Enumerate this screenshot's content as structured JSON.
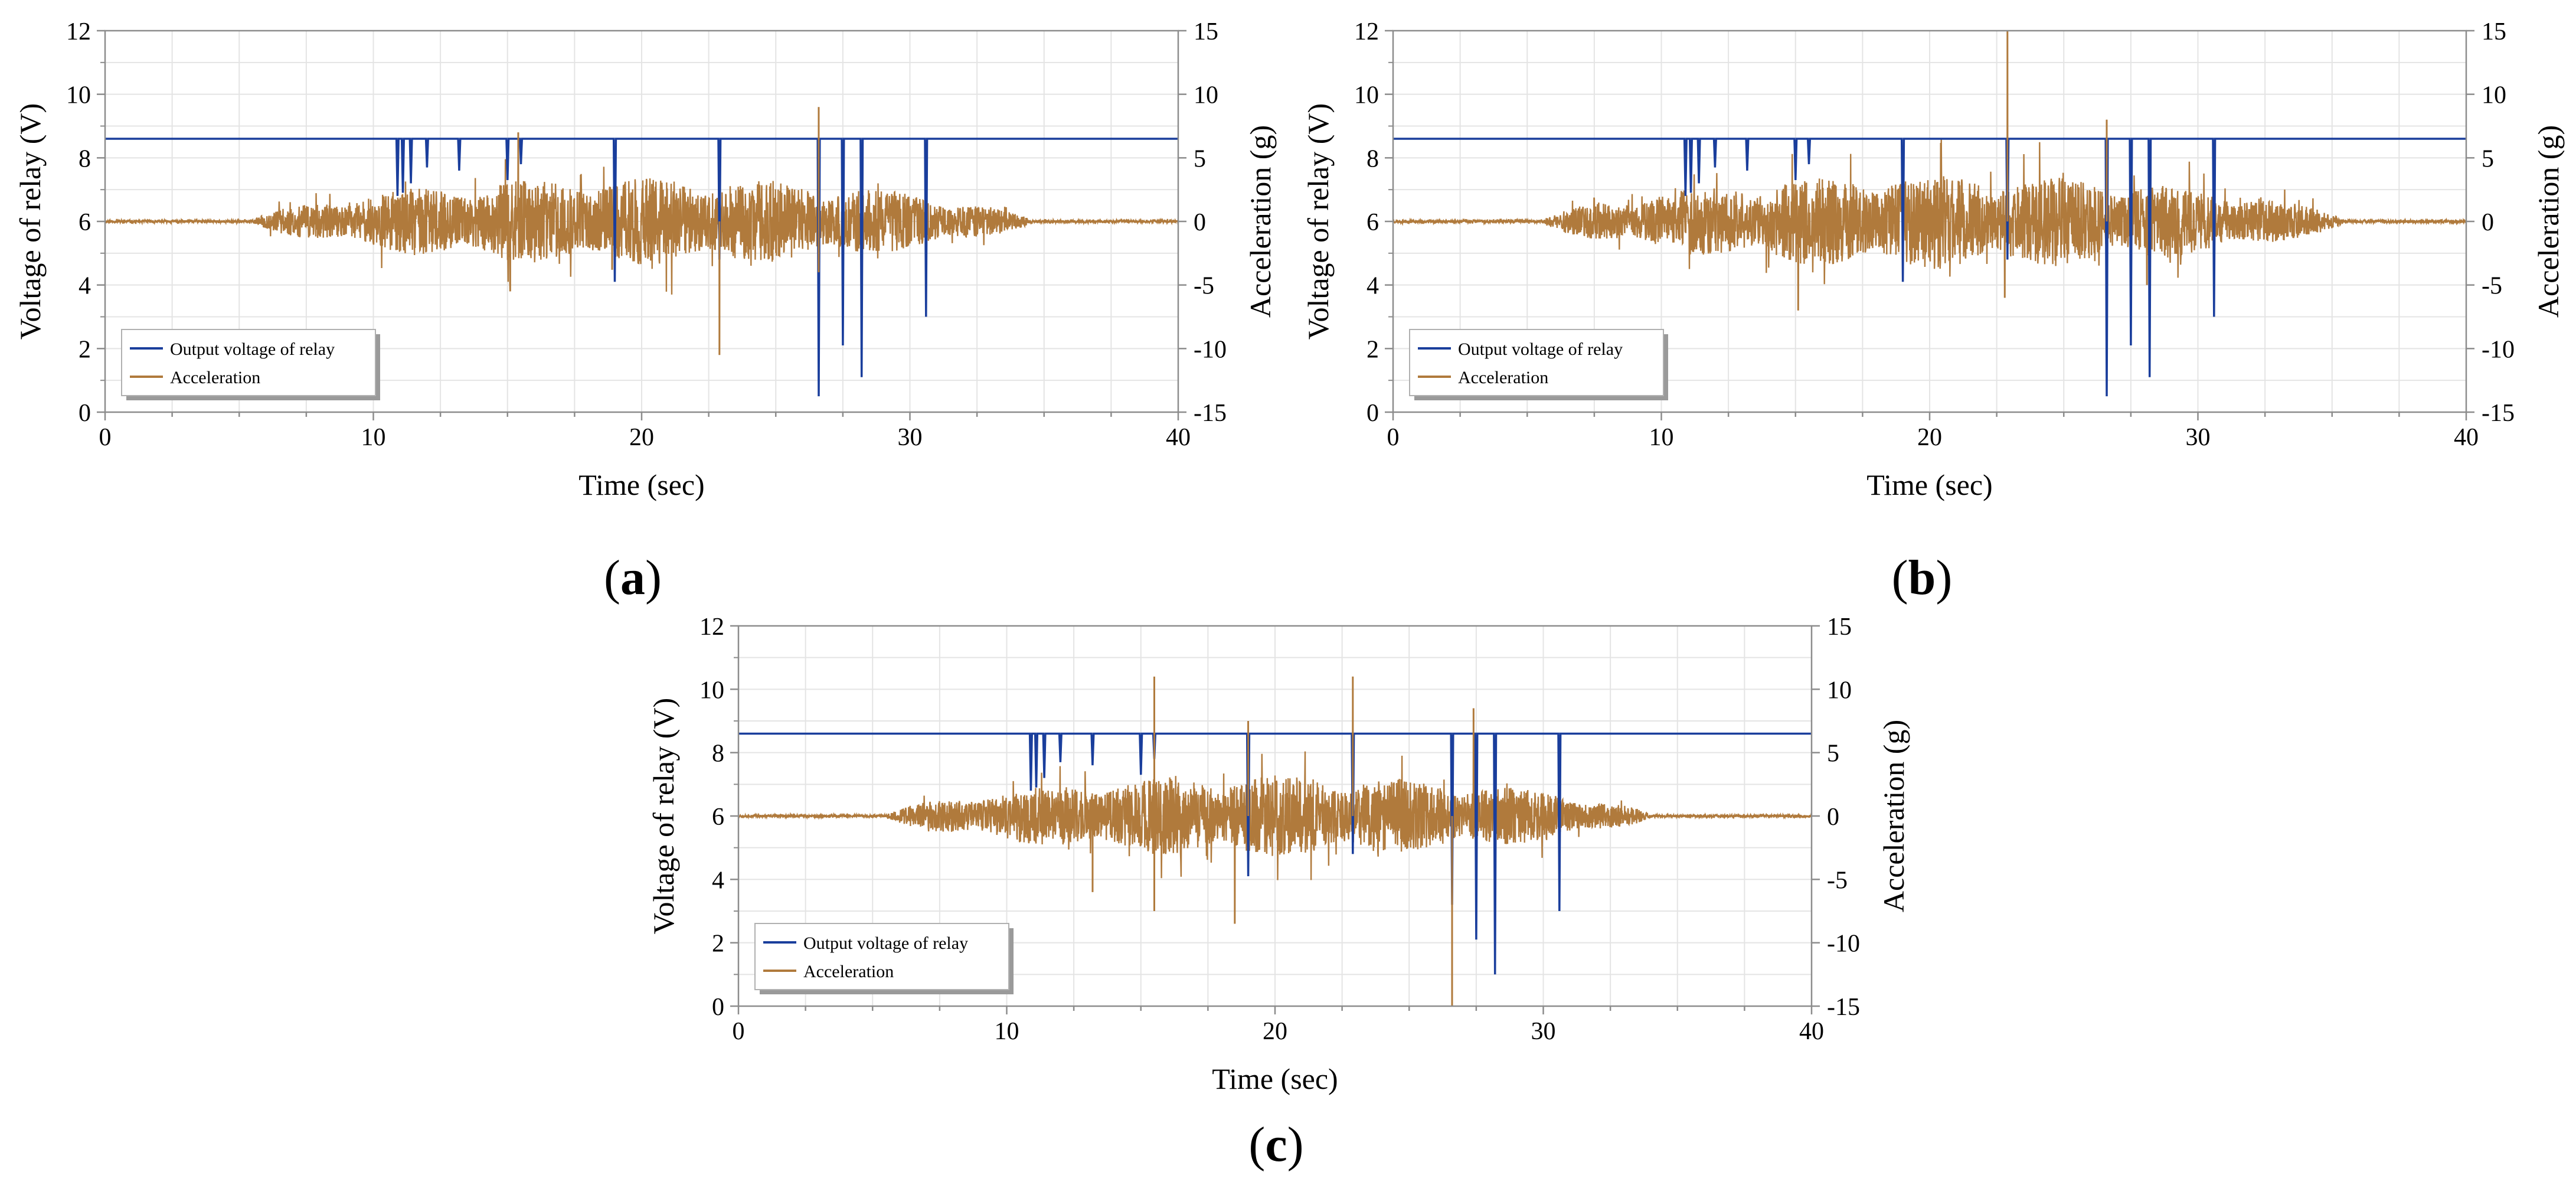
{
  "figure": {
    "panel_labels": [
      {
        "open": "(",
        "letter": "a",
        "close": ")"
      },
      {
        "open": "(",
        "letter": "b",
        "close": ")"
      },
      {
        "open": "(",
        "letter": "c",
        "close": ")"
      }
    ]
  },
  "colors": {
    "voltage": "#1a3e9c",
    "acceleration": "#b07a3c",
    "grid": "#e4e4e4",
    "axis": "#8c8c8c",
    "text": "#000000"
  },
  "chart_data": [
    {
      "id": "a",
      "type": "line",
      "xlabel": "Time (sec)",
      "ylabel": "Voltage of relay (V)",
      "y2label": "Acceleration (g)",
      "xlim": [
        0,
        40
      ],
      "ylim": [
        0,
        12
      ],
      "y2lim": [
        -15,
        15
      ],
      "xticks": [
        0,
        10,
        20,
        30,
        40
      ],
      "yticks": [
        0,
        2,
        4,
        6,
        8,
        10,
        12
      ],
      "y2ticks": [
        -15,
        -10,
        -5,
        0,
        5,
        10,
        15
      ],
      "legend": {
        "position": "bottom-left",
        "entries": [
          "Output voltage of relay",
          "Acceleration"
        ]
      },
      "series": [
        {
          "name": "Output voltage of relay",
          "axis": "left",
          "baseline": 8.6,
          "dips": [
            [
              10.9,
              6.8
            ],
            [
              11.1,
              6.9
            ],
            [
              11.4,
              7.2
            ],
            [
              12.0,
              7.7
            ],
            [
              13.2,
              7.6
            ],
            [
              15.0,
              7.3
            ],
            [
              15.5,
              7.8
            ],
            [
              19.0,
              4.1
            ],
            [
              22.9,
              4.8
            ],
            [
              26.6,
              0.5
            ],
            [
              27.5,
              2.1
            ],
            [
              28.2,
              1.1
            ],
            [
              30.6,
              3.0
            ]
          ]
        },
        {
          "name": "Acceleration",
          "axis": "right",
          "seed": 11,
          "envelope_start": 5.5,
          "envelope_end": 34.5,
          "amplitude": 2.8,
          "spikes": [
            [
              15.4,
              7.0
            ],
            [
              15.1,
              -5.5
            ],
            [
              22.9,
              -10.5
            ],
            [
              26.6,
              9.0
            ],
            [
              26.6,
              -4.0
            ],
            [
              18.9,
              -3.8
            ]
          ]
        }
      ]
    },
    {
      "id": "b",
      "type": "line",
      "xlabel": "Time (sec)",
      "ylabel": "Voltage of relay (V)",
      "y2label": "Acceleration (g)",
      "xlim": [
        0,
        40
      ],
      "ylim": [
        0,
        12
      ],
      "y2lim": [
        -15,
        15
      ],
      "xticks": [
        0,
        10,
        20,
        30,
        40
      ],
      "yticks": [
        0,
        2,
        4,
        6,
        8,
        10,
        12
      ],
      "y2ticks": [
        -15,
        -10,
        -5,
        0,
        5,
        10,
        15
      ],
      "legend": {
        "position": "bottom-left",
        "entries": [
          "Output voltage of relay",
          "Acceleration"
        ]
      },
      "series": [
        {
          "name": "Output voltage of relay",
          "axis": "left",
          "baseline": 8.6,
          "dips": [
            [
              10.9,
              6.8
            ],
            [
              11.1,
              6.9
            ],
            [
              11.4,
              7.2
            ],
            [
              12.0,
              7.7
            ],
            [
              13.2,
              7.6
            ],
            [
              15.0,
              7.3
            ],
            [
              15.5,
              7.8
            ],
            [
              19.0,
              4.1
            ],
            [
              22.9,
              4.8
            ],
            [
              26.6,
              0.5
            ],
            [
              27.5,
              2.1
            ],
            [
              28.2,
              1.1
            ],
            [
              30.6,
              3.0
            ]
          ]
        },
        {
          "name": "Acceleration",
          "axis": "right",
          "seed": 23,
          "envelope_start": 5.5,
          "envelope_end": 35.5,
          "amplitude": 3.0,
          "spikes": [
            [
              22.9,
              15.0
            ],
            [
              26.6,
              8.0
            ],
            [
              15.1,
              -7.0
            ],
            [
              22.8,
              -6.0
            ],
            [
              28.1,
              -5.0
            ]
          ]
        }
      ]
    },
    {
      "id": "c",
      "type": "line",
      "xlabel": "Time (sec)",
      "ylabel": "Voltage of relay (V)",
      "y2label": "Acceleration (g)",
      "xlim": [
        0,
        40
      ],
      "ylim": [
        0,
        12
      ],
      "y2lim": [
        -15,
        15
      ],
      "xticks": [
        0,
        10,
        20,
        30,
        40
      ],
      "yticks": [
        0,
        2,
        4,
        6,
        8,
        10,
        12
      ],
      "y2ticks": [
        -15,
        -10,
        -5,
        0,
        5,
        10,
        15
      ],
      "legend": {
        "position": "bottom-left",
        "entries": [
          "Output voltage of relay",
          "Acceleration"
        ]
      },
      "series": [
        {
          "name": "Output voltage of relay",
          "axis": "left",
          "baseline": 8.6,
          "dips": [
            [
              10.9,
              6.8
            ],
            [
              11.1,
              6.9
            ],
            [
              11.4,
              7.2
            ],
            [
              12.0,
              7.7
            ],
            [
              13.2,
              7.6
            ],
            [
              15.0,
              7.3
            ],
            [
              15.5,
              7.8
            ],
            [
              19.0,
              4.1
            ],
            [
              22.9,
              4.8
            ],
            [
              26.6,
              3.2
            ],
            [
              27.5,
              2.1
            ],
            [
              28.2,
              1.0
            ],
            [
              30.6,
              3.0
            ]
          ]
        },
        {
          "name": "Acceleration",
          "axis": "right",
          "seed": 37,
          "envelope_start": 5.5,
          "envelope_end": 34.0,
          "amplitude": 2.6,
          "spikes": [
            [
              15.5,
              11.0
            ],
            [
              22.9,
              11.0
            ],
            [
              19.0,
              7.5
            ],
            [
              15.5,
              -7.5
            ],
            [
              18.5,
              -8.5
            ],
            [
              26.6,
              -15.0
            ],
            [
              27.4,
              8.5
            ],
            [
              13.2,
              -6.0
            ]
          ]
        }
      ]
    }
  ]
}
